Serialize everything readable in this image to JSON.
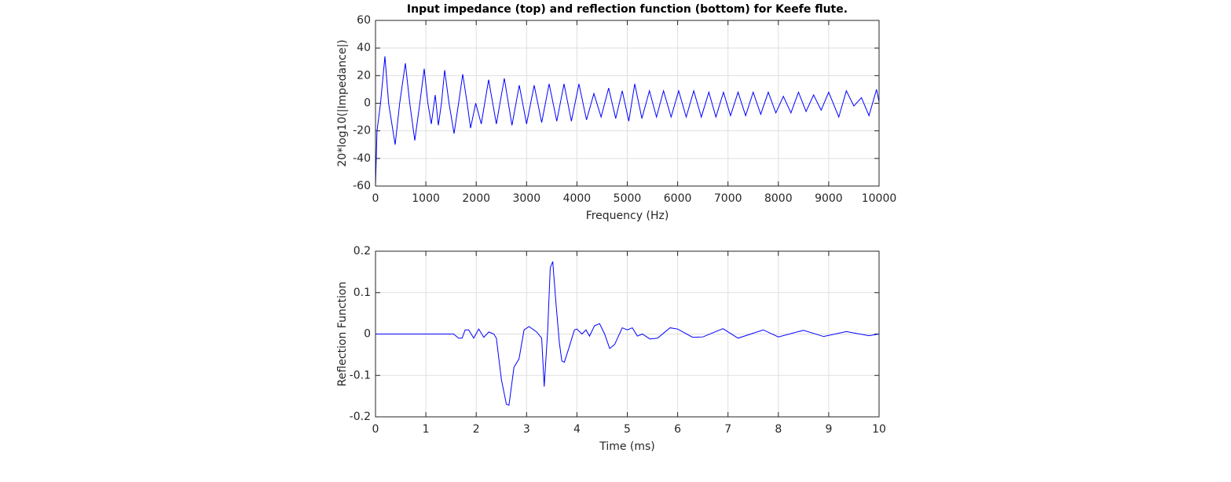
{
  "chart_data": [
    {
      "type": "line",
      "title": "Input impedance (top) and reflection function (bottom) for Keefe flute.",
      "xlabel": "Frequency (Hz)",
      "ylabel": "20*log10(|Impedance|)",
      "x": [
        0,
        30,
        100,
        187,
        260,
        390,
        480,
        593,
        680,
        780,
        880,
        967,
        1040,
        1108,
        1186,
        1248,
        1310,
        1373,
        1460,
        1560,
        1650,
        1732,
        1820,
        1888,
        1990,
        2100,
        2246,
        2400,
        2558,
        2710,
        2855,
        3000,
        3151,
        3300,
        3448,
        3600,
        3744,
        3890,
        4040,
        4190,
        4337,
        4480,
        4630,
        4770,
        4900,
        5030,
        5148,
        5290,
        5440,
        5580,
        5720,
        5870,
        6020,
        6170,
        6320,
        6470,
        6620,
        6760,
        6910,
        7050,
        7200,
        7350,
        7500,
        7650,
        7800,
        7950,
        8100,
        8250,
        8400,
        8550,
        8700,
        8850,
        9000,
        9200,
        9350,
        9500,
        9650,
        9800,
        9950,
        10000
      ],
      "series": [
        {
          "color": "#0000ff",
          "values": [
            -60,
            -20,
            0,
            34,
            0,
            -30,
            0,
            29,
            0,
            -27,
            0,
            25,
            0,
            -15,
            6,
            -16,
            0,
            24,
            0,
            -22,
            0,
            21,
            0,
            -18,
            0,
            -15,
            17,
            -15,
            18,
            -16,
            13,
            -15,
            13,
            -14,
            14,
            -13,
            14,
            -13,
            14,
            -12,
            7,
            -10,
            11,
            -11,
            9,
            -13,
            14,
            -11,
            9,
            -10,
            9,
            -10,
            9,
            -10,
            9,
            -10,
            8,
            -10,
            8,
            -9,
            8,
            -9,
            8,
            -8,
            8,
            -7,
            5,
            -7,
            8,
            -6,
            6,
            -5,
            8,
            -10,
            9,
            -2,
            4,
            -9,
            10,
            1
          ]
        }
      ],
      "xlim": [
        0,
        10000
      ],
      "ylim": [
        -60,
        60
      ],
      "xticks": [
        0,
        1000,
        2000,
        3000,
        4000,
        5000,
        6000,
        7000,
        8000,
        9000,
        10000
      ],
      "yticks": [
        -60,
        -40,
        -20,
        0,
        20,
        40,
        60
      ],
      "grid": true
    },
    {
      "type": "line",
      "xlabel": "Time (ms)",
      "ylabel": "Reflection Function",
      "x": [
        0,
        1.55,
        1.65,
        1.72,
        1.78,
        1.85,
        1.95,
        2.05,
        2.15,
        2.25,
        2.35,
        2.4,
        2.5,
        2.6,
        2.65,
        2.75,
        2.85,
        2.95,
        3.05,
        3.2,
        3.3,
        3.35,
        3.42,
        3.47,
        3.52,
        3.58,
        3.65,
        3.7,
        3.75,
        3.85,
        3.95,
        4.0,
        4.1,
        4.18,
        4.25,
        4.35,
        4.45,
        4.55,
        4.65,
        4.75,
        4.9,
        5.0,
        5.1,
        5.2,
        5.3,
        5.45,
        5.6,
        5.85,
        6.0,
        6.3,
        6.5,
        6.9,
        7.2,
        7.7,
        8.0,
        8.5,
        8.9,
        9.35,
        9.8,
        10
      ],
      "series": [
        {
          "color": "#0000ff",
          "values": [
            0,
            0,
            -0.01,
            -0.01,
            0.01,
            0.01,
            -0.01,
            0.012,
            -0.008,
            0.005,
            0,
            -0.01,
            -0.11,
            -0.17,
            -0.172,
            -0.08,
            -0.06,
            0.01,
            0.018,
            0.005,
            -0.01,
            -0.127,
            0.01,
            0.16,
            0.175,
            0.08,
            -0.02,
            -0.065,
            -0.068,
            -0.03,
            0.01,
            0.012,
            0,
            0.01,
            -0.005,
            0.02,
            0.025,
            0,
            -0.035,
            -0.025,
            0.015,
            0.01,
            0.015,
            -0.005,
            0,
            -0.012,
            -0.01,
            0.015,
            0.012,
            -0.008,
            -0.007,
            0.013,
            -0.01,
            0.01,
            -0.007,
            0.009,
            -0.006,
            0.006,
            -0.004,
            0
          ]
        }
      ],
      "xlim": [
        0,
        10
      ],
      "ylim": [
        -0.2,
        0.2
      ],
      "xticks": [
        0,
        1,
        2,
        3,
        4,
        5,
        6,
        7,
        8,
        9,
        10
      ],
      "yticks": [
        -0.2,
        -0.1,
        0,
        0.1,
        0.2
      ],
      "grid": true
    }
  ]
}
